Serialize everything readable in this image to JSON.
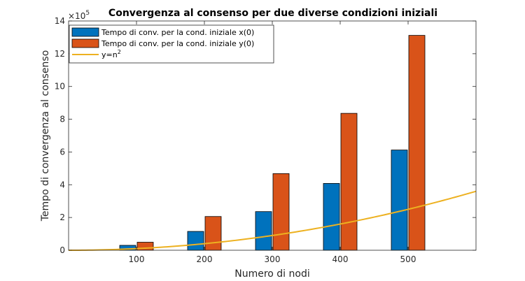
{
  "chart_data": {
    "type": "bar",
    "title": "Convergenza al consenso per due diverse condizioni iniziali",
    "xlabel": "Numero di nodi",
    "ylabel": "Tempo di convergenza al consenso",
    "y_exponent_label": "×10",
    "y_exponent_power": "5",
    "categories": [
      100,
      200,
      300,
      400,
      500
    ],
    "xlim": [
      0,
      600
    ],
    "ylim": [
      0,
      1400000
    ],
    "x_ticks": [
      "100",
      "200",
      "300",
      "400",
      "500"
    ],
    "y_ticks": [
      "0",
      "2",
      "4",
      "6",
      "8",
      "10",
      "12",
      "14"
    ],
    "series": [
      {
        "name": "Tempo di conv. per la cond. iniziale x(0)",
        "kind": "bar",
        "color": "#0072BD",
        "values": [
          30000,
          115000,
          236000,
          408000,
          612000
        ]
      },
      {
        "name": "Tempo di conv. per la cond. iniziale y(0)",
        "kind": "bar",
        "color": "#D95319",
        "values": [
          49000,
          206000,
          468000,
          836000,
          1312000
        ]
      },
      {
        "name_prefix": "y=n",
        "name_sup": "2",
        "kind": "line",
        "color": "#EDB120",
        "function": "n^2",
        "x_range": [
          0,
          600
        ]
      }
    ],
    "grid": false,
    "legend_position": "top-left"
  }
}
